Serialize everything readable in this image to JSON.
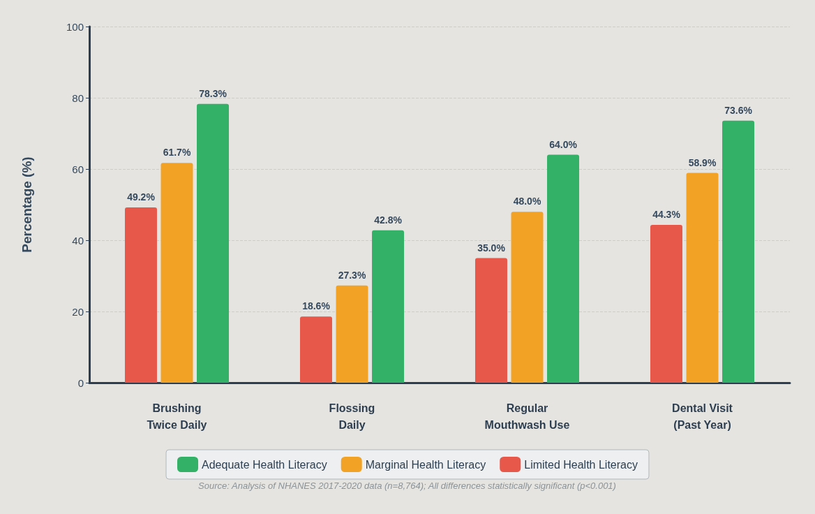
{
  "chart_data": {
    "type": "bar",
    "ylabel": "Percentage (%)",
    "categories": [
      "Brushing\nTwice Daily",
      "Flossing\nDaily",
      "Regular\nMouthwash Use",
      "Dental Visit\n(Past Year)"
    ],
    "series": [
      {
        "name": "Limited Health Literacy",
        "color": "#e8584a",
        "values": [
          49.2,
          18.6,
          35.0,
          44.3
        ]
      },
      {
        "name": "Marginal Health Literacy",
        "color": "#f2a225",
        "values": [
          61.7,
          27.3,
          48.0,
          58.9
        ]
      },
      {
        "name": "Adequate Health Literacy",
        "color": "#33b166",
        "values": [
          78.3,
          42.8,
          64.0,
          73.6
        ]
      }
    ],
    "value_labels": [
      [
        "49.2%",
        "18.6%",
        "35.0%",
        "44.3%"
      ],
      [
        "61.7%",
        "27.3%",
        "48.0%",
        "58.9%"
      ],
      [
        "78.3%",
        "42.8%",
        "64.0%",
        "73.6%"
      ]
    ],
    "ylim": [
      0,
      100
    ],
    "yticks": [
      0,
      20,
      40,
      60,
      80,
      100
    ],
    "grid": "y",
    "legend": "bottom",
    "annotations": [
      "Source: Analysis of NHANES 2017-2020 data (n=8,764); All differences statistically significant (p<0.001)"
    ]
  }
}
